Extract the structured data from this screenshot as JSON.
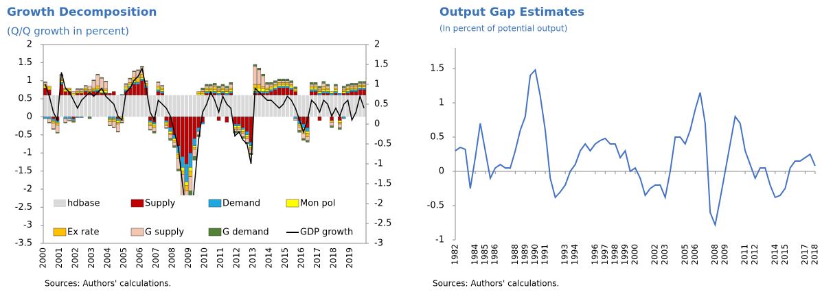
{
  "chart_data": [
    {
      "type": "bar",
      "title": "Growth Decomposition",
      "subtitle": "(Q/Q growth in percent)",
      "source": "Sources: Authors' calculations.",
      "categories": [
        "2000",
        null,
        null,
        null,
        "2001",
        null,
        null,
        null,
        "2002",
        null,
        null,
        null,
        "2003",
        null,
        null,
        null,
        "2004",
        null,
        null,
        null,
        "2005",
        null,
        null,
        null,
        "2006",
        null,
        null,
        null,
        "2007",
        null,
        null,
        null,
        "2008",
        null,
        null,
        null,
        "2009",
        null,
        null,
        null,
        "2010",
        null,
        null,
        null,
        "2011",
        null,
        null,
        null,
        "2012",
        null,
        null,
        null,
        "2013",
        null,
        null,
        null,
        "2014",
        null,
        null,
        null,
        "2015",
        null,
        null,
        null,
        "2016",
        null,
        null,
        null,
        "2017",
        null,
        null,
        null,
        "2018",
        null,
        null,
        null,
        "2019",
        null,
        null,
        null
      ],
      "ylim": [
        -3.5,
        2
      ],
      "yticks": [
        -3.5,
        -3,
        -2.5,
        -2,
        -1.5,
        -1,
        -0.5,
        0,
        0.5,
        1,
        1.5,
        2
      ],
      "y2lim": [
        -3,
        2
      ],
      "y2ticks": [
        -3,
        -2.5,
        -2,
        -1.5,
        -1,
        -0.5,
        0,
        0.5,
        1,
        1.5,
        2
      ],
      "legend": "bottom",
      "series": [
        {
          "name": "hdbase",
          "color": "#d9d9d9",
          "values": [
            0.6,
            0.6,
            0.6,
            0.6,
            0.6,
            0.6,
            0.6,
            0.6,
            0.6,
            0.6,
            0.6,
            0.6,
            0.6,
            0.6,
            0.6,
            0.6,
            0.6,
            0.6,
            0.6,
            0.6,
            0.6,
            0.6,
            0.6,
            0.6,
            0.6,
            0.6,
            0.6,
            0.6,
            0.6,
            0.6,
            0.6,
            0.6,
            0.6,
            0.6,
            0.6,
            0.6,
            0.6,
            0.6,
            0.6,
            0.6,
            0.6,
            0.6,
            0.6,
            0.6,
            0.6,
            0.6,
            0.6,
            0.6,
            0.6,
            0.6,
            0.6,
            0.6,
            0.6,
            0.6,
            0.6,
            0.6,
            0.6,
            0.6,
            0.6,
            0.6,
            0.6,
            0.6,
            0.6,
            0.6,
            0.6,
            0.6,
            0.6,
            0.6,
            0.6,
            0.6,
            0.6,
            0.6,
            0.6,
            0.6,
            0.6,
            0.6,
            0.6,
            0.6,
            0.6,
            0.6
          ]
        },
        {
          "name": "Supply",
          "color": "#c00000",
          "values": [
            0.2,
            0.15,
            -0.05,
            -0.1,
            0.3,
            0.1,
            0.1,
            -0.05,
            0.05,
            0.05,
            0.1,
            0.05,
            0.1,
            0.1,
            0.05,
            0.05,
            0.05,
            0.1,
            -0.05,
            0,
            0.1,
            0.2,
            0.3,
            0.3,
            0.4,
            0.2,
            -0.1,
            -0.15,
            0.1,
            0.05,
            -0.1,
            -0.3,
            -0.5,
            -0.8,
            -1.1,
            -1.3,
            -1.0,
            -0.6,
            -0.3,
            -0.15,
            0.05,
            0.05,
            0.05,
            -0.1,
            0.05,
            -0.15,
            0.05,
            -0.2,
            -0.2,
            -0.3,
            -0.4,
            -0.7,
            0.05,
            0.05,
            0.05,
            0.05,
            0.1,
            0.15,
            0.2,
            0.2,
            0.2,
            0.15,
            0.1,
            -0.1,
            -0.2,
            -0.3,
            0.1,
            0.1,
            -0.1,
            0.05,
            0.05,
            -0.1,
            0.05,
            -0.1,
            0.05,
            0.05,
            0.1,
            0.1,
            0.15,
            0.15
          ]
        },
        {
          "name": "Demand",
          "color": "#1ea7e1",
          "values": [
            -0.05,
            -0.05,
            -0.05,
            -0.05,
            0.05,
            -0.05,
            -0.05,
            -0.05,
            -0.02,
            -0.02,
            0.02,
            0.02,
            0.02,
            0.05,
            0.02,
            0.02,
            -0.05,
            -0.05,
            -0.05,
            0.02,
            0.05,
            0.05,
            0.05,
            0.05,
            0.05,
            0.05,
            -0.05,
            -0.05,
            0.05,
            0.05,
            -0.05,
            -0.1,
            -0.1,
            -0.2,
            -0.3,
            -0.5,
            -0.4,
            -0.2,
            -0.1,
            -0.05,
            0.05,
            0.05,
            0.05,
            0.05,
            0.05,
            0.05,
            0.05,
            -0.05,
            -0.05,
            -0.05,
            -0.1,
            -0.1,
            0.05,
            0.05,
            0.05,
            0.05,
            0.05,
            0.05,
            0.05,
            0.05,
            0.05,
            0.05,
            -0.05,
            -0.1,
            -0.1,
            -0.1,
            0.05,
            0.05,
            0.05,
            0.05,
            0.05,
            0.05,
            0.05,
            0.05,
            -0.05,
            0.05,
            0.05,
            0.05,
            0.05,
            0.05
          ]
        },
        {
          "name": "Mon pol",
          "color": "#ffff00",
          "values": [
            0.05,
            0.05,
            -0.03,
            -0.03,
            0.05,
            0.05,
            0.05,
            0.05,
            0.03,
            0.03,
            0.03,
            0.03,
            0.03,
            0.03,
            0.05,
            0.05,
            -0.03,
            -0.03,
            -0.05,
            -0.05,
            0.05,
            0.05,
            0.05,
            0.03,
            0.03,
            0.03,
            -0.05,
            -0.05,
            0.05,
            0.05,
            -0.05,
            -0.05,
            -0.05,
            -0.05,
            -0.1,
            -0.1,
            -0.1,
            -0.05,
            0.05,
            0.05,
            0.05,
            0.05,
            0.05,
            0.05,
            0.05,
            0.05,
            0.05,
            -0.05,
            -0.05,
            -0.05,
            -0.05,
            -0.05,
            0.1,
            0.1,
            0.08,
            0.05,
            0.05,
            0.05,
            0.05,
            0.05,
            0.05,
            0.05,
            0.03,
            -0.03,
            -0.05,
            -0.05,
            0.05,
            0.05,
            0.05,
            0.05,
            0.05,
            0.05,
            0.05,
            -0.05,
            0.05,
            0.05,
            0.03,
            0.03,
            0.03,
            0.03
          ]
        },
        {
          "name": "Ex rate",
          "color": "#ffc000",
          "values": [
            0.05,
            0.05,
            -0.05,
            -0.05,
            0.05,
            0.05,
            0.05,
            -0.03,
            0.03,
            0.03,
            0.05,
            0.05,
            0.05,
            0.08,
            0.05,
            0.05,
            -0.05,
            -0.05,
            -0.05,
            -0.05,
            0.05,
            0.05,
            0.1,
            0.1,
            0.1,
            0.05,
            -0.05,
            -0.05,
            0.05,
            0.05,
            -0.05,
            -0.05,
            -0.05,
            -0.1,
            -0.1,
            -0.15,
            -0.15,
            -0.05,
            0.05,
            0.05,
            0.05,
            0.05,
            0.08,
            0.05,
            0.05,
            0.05,
            0.05,
            -0.05,
            -0.05,
            -0.05,
            -0.05,
            -0.05,
            0.1,
            0.1,
            0.05,
            0.05,
            0.05,
            0.05,
            0.05,
            0.05,
            0.05,
            0.05,
            0.05,
            -0.05,
            -0.1,
            -0.1,
            0.05,
            0.05,
            0.05,
            0.08,
            0.05,
            -0.05,
            0.05,
            -0.05,
            0.05,
            0.05,
            0.05,
            0.05,
            0.05,
            0.05
          ]
        },
        {
          "name": "G supply",
          "color": "#f4c6b0",
          "values": [
            0.05,
            -0.1,
            -0.15,
            -0.2,
            0.1,
            -0.1,
            -0.05,
            0.05,
            0.05,
            0.05,
            0.05,
            0.1,
            0.2,
            0.3,
            0.3,
            0.2,
            -0.1,
            -0.15,
            -0.2,
            -0.05,
            0.05,
            0.1,
            0.15,
            0.2,
            0.2,
            0.05,
            -0.1,
            -0.1,
            0.1,
            0.05,
            -0.05,
            -0.1,
            -0.1,
            -0.3,
            -0.6,
            -0.5,
            -0.4,
            -0.2,
            -0.1,
            0.05,
            0.05,
            0.05,
            0.05,
            0.05,
            0.05,
            0.05,
            0.1,
            -0.05,
            -0.05,
            -0.1,
            -0.1,
            -0.1,
            0.5,
            0.4,
            0.3,
            0.1,
            0.05,
            0.05,
            0.05,
            0.05,
            0.05,
            0.05,
            -0.05,
            -0.1,
            -0.15,
            -0.1,
            0.05,
            0.05,
            0.05,
            0.1,
            0.05,
            -0.1,
            0.05,
            -0.1,
            0.05,
            0.05,
            0.05,
            0.05,
            0.05,
            0.05
          ]
        },
        {
          "name": "G demand",
          "color": "#548235",
          "values": [
            0.02,
            -0.02,
            -0.02,
            -0.02,
            0.02,
            -0.02,
            -0.02,
            -0.02,
            0.02,
            0.02,
            0.02,
            -0.05,
            0.02,
            0.02,
            0.02,
            0.02,
            -0.02,
            -0.02,
            -0.02,
            -0.02,
            0.02,
            0.02,
            0.02,
            0.02,
            0.02,
            0.02,
            -0.02,
            -0.05,
            0.02,
            0.02,
            -0.02,
            -0.05,
            -0.05,
            -0.05,
            -0.1,
            -0.2,
            -0.3,
            -0.1,
            -0.05,
            0.05,
            0.05,
            0.05,
            0.05,
            0.05,
            0.05,
            0.05,
            0.05,
            -0.05,
            -0.05,
            -0.05,
            -0.05,
            -0.05,
            0.05,
            0.05,
            0.05,
            0.05,
            0.05,
            0.05,
            0.05,
            0.05,
            0.05,
            0.05,
            0.05,
            -0.05,
            -0.05,
            -0.05,
            0.05,
            0.05,
            0.05,
            0.05,
            0.05,
            -0.05,
            0.05,
            -0.05,
            0.05,
            0.05,
            0.05,
            0.05,
            0.05,
            0.05
          ]
        },
        {
          "name": "GDP growth",
          "type": "line",
          "axis": "y2",
          "color": "#000000",
          "values": [
            1.0,
            0.7,
            0.3,
            0.1,
            1.3,
            0.9,
            0.8,
            0.6,
            0.4,
            0.6,
            0.7,
            0.8,
            0.7,
            0.8,
            0.9,
            0.7,
            0.6,
            0.5,
            0.2,
            0.1,
            0.8,
            0.9,
            1.1,
            1.2,
            1.4,
            0.9,
            0.3,
            0.1,
            0.6,
            0.5,
            0.4,
            0.2,
            -0.2,
            -0.6,
            -1.5,
            -2.3,
            -2.7,
            -1.5,
            -0.4,
            0.3,
            0.5,
            0.8,
            0.6,
            0.3,
            0.7,
            0.5,
            0.4,
            -0.3,
            -0.2,
            -0.4,
            -0.5,
            -1.0,
            0.9,
            0.8,
            0.7,
            0.6,
            0.6,
            0.5,
            0.4,
            0.5,
            0.7,
            0.6,
            0.4,
            0.1,
            -0.2,
            0.1,
            0.6,
            0.5,
            0.3,
            0.6,
            0.5,
            0.2,
            0.4,
            0.2,
            0.5,
            0.6,
            0.1,
            0.3,
            0.7,
            0.4
          ]
        }
      ]
    },
    {
      "type": "line",
      "title": "Output Gap Estimates",
      "subtitle": "(In percent of potential output)",
      "source": "Sources: Authors' calculations.",
      "color": "#4472c4",
      "x": [
        1982,
        1982.5,
        1983,
        1983.5,
        1984,
        1984.5,
        1985,
        1985.5,
        1986,
        1986.5,
        1987,
        1987.5,
        1988,
        1988.5,
        1989,
        1989.5,
        1990,
        1990.5,
        1991,
        1991.5,
        1992,
        1992.5,
        1993,
        1993.5,
        1994,
        1994.5,
        1995,
        1995.5,
        1996,
        1996.5,
        1997,
        1997.5,
        1998,
        1998.5,
        1999,
        1999.5,
        2000,
        2000.5,
        2001,
        2001.5,
        2002,
        2002.5,
        2003,
        2003.5,
        2004,
        2004.5,
        2005,
        2005.5,
        2006,
        2006.5,
        2007,
        2007.5,
        2008,
        2008.5,
        2009,
        2009.5,
        2010,
        2010.5,
        2011,
        2011.5,
        2012,
        2012.5,
        2013,
        2013.5,
        2014,
        2014.5,
        2015,
        2015.5,
        2016,
        2016.5,
        2017,
        2017.5,
        2018
      ],
      "values": [
        0.3,
        0.35,
        0.32,
        -0.25,
        0.2,
        0.7,
        0.3,
        -0.1,
        0.05,
        0.1,
        0.05,
        0.05,
        0.3,
        0.6,
        0.8,
        1.4,
        1.48,
        1.1,
        0.6,
        -0.1,
        -0.38,
        -0.3,
        -0.2,
        0.0,
        0.1,
        0.3,
        0.4,
        0.3,
        0.4,
        0.45,
        0.48,
        0.4,
        0.4,
        0.2,
        0.3,
        0.0,
        0.05,
        -0.1,
        -0.35,
        -0.25,
        -0.2,
        -0.2,
        -0.38,
        0.0,
        0.5,
        0.5,
        0.4,
        0.6,
        0.9,
        1.15,
        0.7,
        -0.6,
        -0.78,
        -0.4,
        0.0,
        0.4,
        0.8,
        0.7,
        0.3,
        0.1,
        -0.1,
        0.05,
        0.05,
        -0.2,
        -0.38,
        -0.35,
        -0.25,
        0.05,
        0.15,
        0.15,
        0.2,
        0.25,
        0.08
      ],
      "xlim": [
        1982,
        2018
      ],
      "xticks": [
        1982,
        1984,
        1985,
        1986,
        1988,
        1989,
        1990,
        1991,
        1993,
        1994,
        1996,
        1997,
        1998,
        1999,
        2000,
        2002,
        2003,
        2005,
        2006,
        2008,
        2009,
        2011,
        2012,
        2014,
        2015,
        2017,
        2018
      ],
      "ylim": [
        -1,
        1.8
      ],
      "yticks": [
        -1,
        -0.5,
        0,
        0.5,
        1,
        1.5
      ]
    }
  ]
}
